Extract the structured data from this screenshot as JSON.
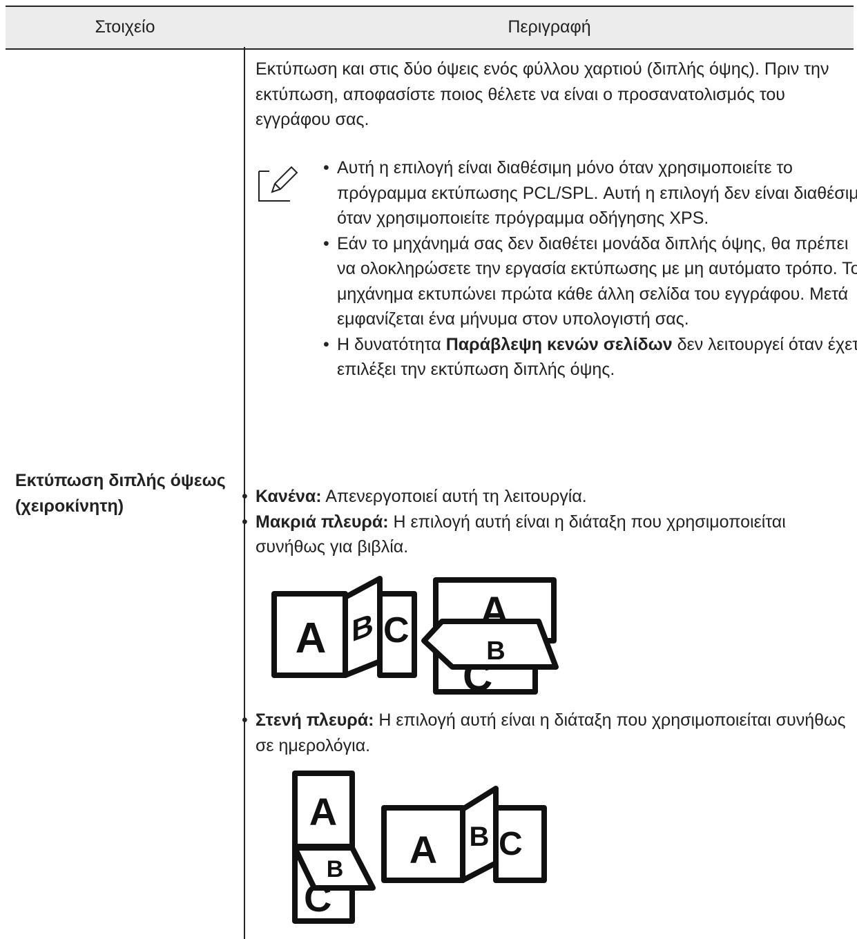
{
  "table": {
    "headers": [
      "Στοιχείο",
      "Περιγραφή"
    ],
    "rows": [
      {
        "item": "Εκτύπωση διπλής όψεως (χειροκίνητη)",
        "description": {
          "intro": "Εκτύπωση και στις δύο όψεις ενός φύλλου χαρτιού (διπλής όψης). Πριν την εκτύπωση, αποφασίστε ποιος θέλετε να είναι ο προσανατολισμός του εγγράφου σας.",
          "notes": [
            "Αυτή η επιλογή είναι διαθέσιμη μόνο όταν χρησιμοποιείτε το πρόγραμμα εκτύπωσης PCL/SPL. Αυτή η επιλογή δεν είναι διαθέσιμη όταν χρησιμοποιείτε πρόγραμμα οδήγησης XPS.",
            "Εάν το μηχάνημά σας δεν διαθέτει μονάδα διπλής όψης, θα πρέπει να ολοκληρώσετε την εργασία εκτύπωσης με μη αυτόματο τρόπο. Το μηχάνημα εκτυπώνει πρώτα κάθε άλλη σελίδα του εγγράφου. Μετά εμφανίζεται ένα μήνυμα στον υπολογιστή σας.",
            {
              "before": "Η δυνατότητα",
              "bold": "Παράβλεψη κενών σελίδων",
              "after": "δεν λειτουργεί όταν έχετε επιλέξει την εκτύπωση διπλής όψης."
            }
          ],
          "options": [
            {
              "label": "Κανένα:",
              "text": "Απενεργοποιεί αυτή τη λειτουργία."
            },
            {
              "label": "Μακριά πλευρά:",
              "text": "Η επιλογή αυτή είναι η διάταξη που χρησιμοποιείται συνήθως για βιβλία.",
              "figure_letters": [
                "A",
                "B",
                "C"
              ]
            },
            {
              "label": "Στενή πλευρά:",
              "text": "Η επιλογή αυτή είναι η διάταξη που χρησιμοποιείται συνήθως σε ημερολόγια.",
              "figure_letters": [
                "A",
                "B",
                "C"
              ]
            }
          ]
        }
      }
    ]
  }
}
